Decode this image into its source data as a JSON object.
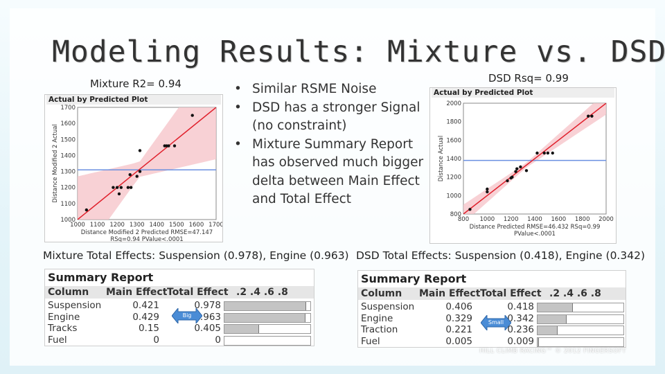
{
  "slide": {
    "title": "Modeling Results: Mixture vs. DSD",
    "left_r2": "Mixture R2= 0.94",
    "right_rsq": "DSD Rsq= 0.99",
    "bullets": [
      "Similar RSME Noise",
      "DSD has a stronger Signal (no constraint)",
      "Mixture Summary Report has observed much bigger delta between Main Effect and Total Effect"
    ],
    "left_effects_caption": "Mixture Total Effects: Suspension (0.978), Engine (0.963)",
    "right_effects_caption": "DSD Total Effects: Suspension (0.418), Engine (0.342)",
    "watermark": "HILL CLIMB RACING™ © 2012 FINGERSOFT",
    "colors": {
      "fit_line": "#e0202c",
      "mean_line": "#6a8fe0",
      "band": "#f6c5cb",
      "tag_blue": "#4a8cd6"
    }
  },
  "left_plot": {
    "header": "Actual by Predicted Plot",
    "xlabel": "Distance Modified 2 Predicted RMSE=47.147",
    "xlabel2": "RSq=0.94 PValue<.0001",
    "ylabel": "Distance Modified 2 Actual",
    "xticks": [
      "1000",
      "1100",
      "1200",
      "1300",
      "1400",
      "1500",
      "1600",
      "1700"
    ],
    "yticks": [
      "1000",
      "1100",
      "1200",
      "1300",
      "1400",
      "1500",
      "1600",
      "1700"
    ]
  },
  "right_plot": {
    "header": "Actual by Predicted Plot",
    "xlabel": "Distance Predicted RMSE=46.432 RSq=0.99",
    "xlabel2": "PValue<.0001",
    "ylabel": "Distance Actual",
    "xticks": [
      "800",
      "1000",
      "1200",
      "1400",
      "1600",
      "1800",
      "2000"
    ],
    "yticks": [
      "800",
      "1000",
      "1200",
      "1400",
      "1600",
      "1800",
      "2000"
    ]
  },
  "chart_data": [
    {
      "type": "scatter",
      "title": "Actual by Predicted Plot",
      "xlabel": "Distance Modified 2 Predicted RMSE=47.147",
      "ylabel": "Distance Modified 2 Actual",
      "xlim": [
        1000,
        1700
      ],
      "ylim": [
        1000,
        1700
      ],
      "mean_line": 1310,
      "points": [
        [
          1045,
          1060
        ],
        [
          1180,
          1200
        ],
        [
          1200,
          1200
        ],
        [
          1210,
          1160
        ],
        [
          1220,
          1200
        ],
        [
          1255,
          1200
        ],
        [
          1265,
          1280
        ],
        [
          1270,
          1200
        ],
        [
          1300,
          1270
        ],
        [
          1315,
          1300
        ],
        [
          1315,
          1430
        ],
        [
          1440,
          1460
        ],
        [
          1450,
          1460
        ],
        [
          1460,
          1460
        ],
        [
          1490,
          1460
        ],
        [
          1580,
          1650
        ]
      ]
    },
    {
      "type": "scatter",
      "title": "Actual by Predicted Plot",
      "xlabel": "Distance Predicted RMSE=46.432 RSq=0.99",
      "ylabel": "Distance Actual",
      "xlim": [
        800,
        2000
      ],
      "ylim": [
        800,
        2000
      ],
      "mean_line": 1380,
      "points": [
        [
          855,
          850
        ],
        [
          1000,
          1040
        ],
        [
          1000,
          1070
        ],
        [
          1170,
          1160
        ],
        [
          1200,
          1190
        ],
        [
          1210,
          1200
        ],
        [
          1240,
          1260
        ],
        [
          1250,
          1290
        ],
        [
          1280,
          1310
        ],
        [
          1330,
          1270
        ],
        [
          1420,
          1460
        ],
        [
          1480,
          1460
        ],
        [
          1510,
          1460
        ],
        [
          1550,
          1460
        ],
        [
          1850,
          1860
        ],
        [
          1880,
          1860
        ]
      ]
    }
  ],
  "left_report": {
    "title": "Summary Report",
    "headers": [
      "Column",
      "Main Effect",
      "Total Effect",
      ".2 .4 .6 .8"
    ],
    "rows": [
      {
        "column": "Suspension",
        "main": "0.421",
        "total": "0.978",
        "value": 0.978
      },
      {
        "column": "Engine",
        "main": "0.429",
        "total": "0.963",
        "value": 0.963
      },
      {
        "column": "Tracks",
        "main": "0.15",
        "total": "0.405",
        "value": 0.405
      },
      {
        "column": "Fuel",
        "main": "0",
        "total": "0",
        "value": 0
      }
    ],
    "tag": "Big"
  },
  "right_report": {
    "title": "Summary Report",
    "headers": [
      "Column",
      "Main Effect",
      "Total Effect",
      ".2 .4 .6 .8"
    ],
    "rows": [
      {
        "column": "Suspension",
        "main": "0.406",
        "total": "0.418",
        "value": 0.418
      },
      {
        "column": "Engine",
        "main": "0.329",
        "total": "0.342",
        "value": 0.342
      },
      {
        "column": "Traction",
        "main": "0.221",
        "total": "0.236",
        "value": 0.236
      },
      {
        "column": "Fuel",
        "main": "0.005",
        "total": "0.009",
        "value": 0.009
      }
    ],
    "tag": "Small"
  }
}
